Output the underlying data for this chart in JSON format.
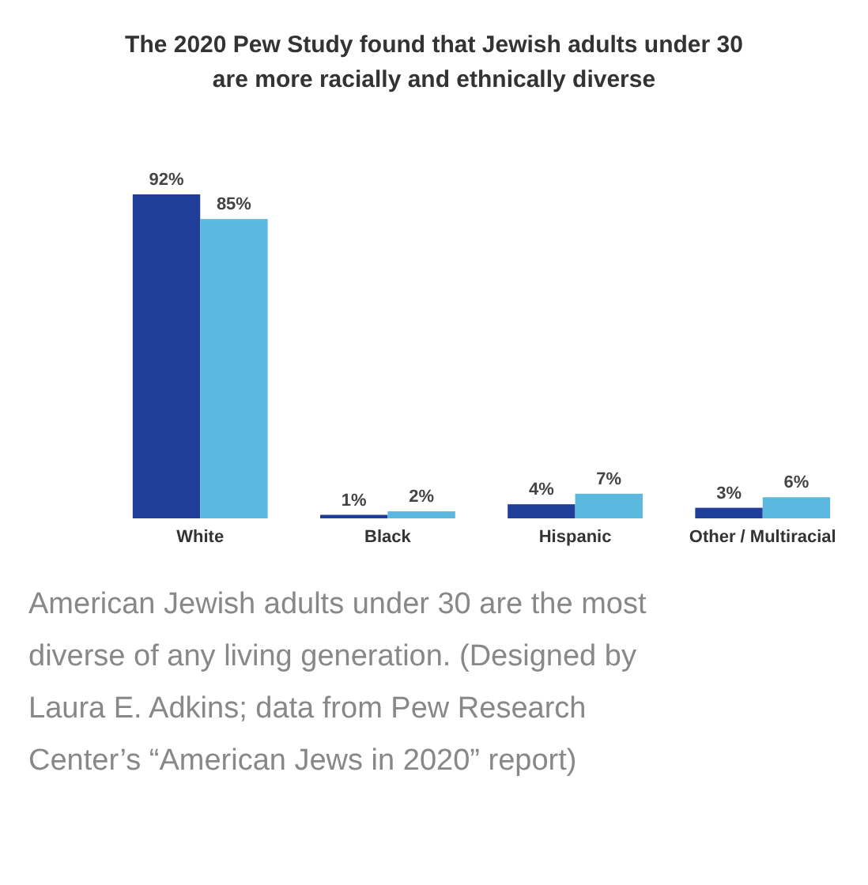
{
  "chart_data": {
    "type": "bar",
    "title": "The 2020 Pew Study found that Jewish adults under 30 are more racially and ethnically diverse",
    "categories": [
      "White",
      "Black",
      "Hispanic",
      "Other / Multiracial"
    ],
    "series": [
      {
        "color": "#1f3d99",
        "values": [
          92,
          1,
          4,
          3
        ],
        "value_labels": [
          "92%",
          "1%",
          "4%",
          "3%"
        ]
      },
      {
        "color": "#5bb8de",
        "values": [
          85,
          2,
          7,
          6
        ],
        "value_labels": [
          "85%",
          "2%",
          "7%",
          "6%"
        ]
      }
    ],
    "annotations": [
      "American Jewish adults under 30 are the most diverse of any living generation. (Designed by Laura E. Adkins; data from Pew Research Center’s “American Jews in 2020” report)"
    ]
  }
}
